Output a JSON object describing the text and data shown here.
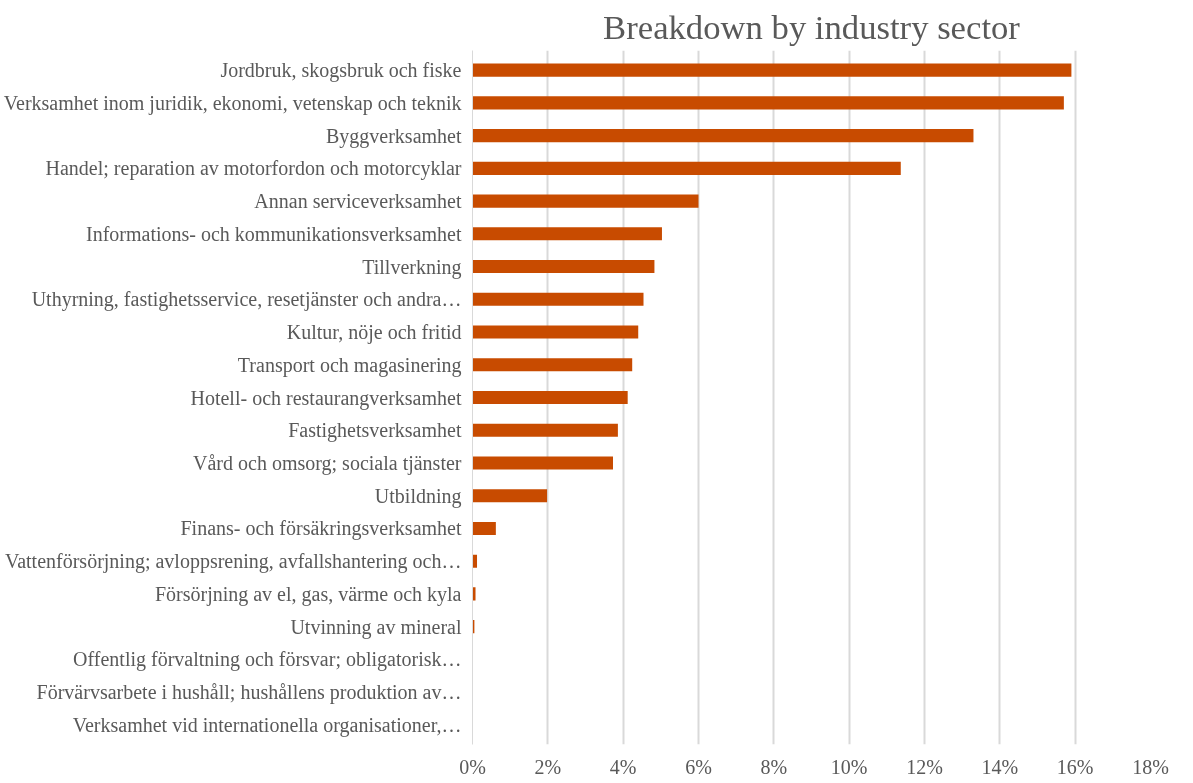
{
  "chart_data": {
    "type": "bar",
    "orientation": "horizontal",
    "title": "Breakdown by industry sector",
    "categories": [
      "Jordbruk, skogsbruk och fiske",
      "Verksamhet inom juridik, ekonomi, vetenskap och teknik",
      "Byggverksamhet",
      "Handel; reparation av motorfordon och motorcyklar",
      "Annan serviceverksamhet",
      "Informations- och kommunikationsverksamhet",
      "Tillverkning",
      "Uthyrning, fastighetsservice, resetjänster och andra…",
      "Kultur, nöje och fritid",
      "Transport och magasinering",
      "Hotell- och restaurangverksamhet",
      "Fastighetsverksamhet",
      "Vård och omsorg; sociala tjänster",
      "Utbildning",
      "Finans- och försäkringsverksamhet",
      "Vattenförsörjning; avloppsrening, avfallshantering och…",
      "Försörjning av el, gas, värme och kyla",
      "Utvinning av mineral",
      "Offentlig förvaltning och försvar; obligatorisk…",
      "Förvärvsarbete i hushåll; hushållens produktion av…",
      "Verksamhet vid internationella organisationer,…"
    ],
    "values": [
      15.9,
      15.7,
      13.3,
      11.37,
      6.0,
      5.03,
      4.83,
      4.54,
      4.4,
      4.24,
      4.12,
      3.86,
      3.73,
      1.98,
      0.62,
      0.12,
      0.08,
      0.05,
      0,
      0,
      0
    ],
    "color": "#c84b00",
    "xlim": [
      0,
      18
    ],
    "xticks": [
      {
        "value": 0,
        "label": "0%"
      },
      {
        "value": 2,
        "label": "2%"
      },
      {
        "value": 4,
        "label": "4%"
      },
      {
        "value": 6,
        "label": "6%"
      },
      {
        "value": 8,
        "label": "8%"
      },
      {
        "value": 10,
        "label": "10%"
      },
      {
        "value": 12,
        "label": "12%"
      },
      {
        "value": 14,
        "label": "14%"
      },
      {
        "value": 16,
        "label": "16%"
      },
      {
        "value": 18,
        "label": "18%"
      }
    ],
    "grid": "x"
  }
}
